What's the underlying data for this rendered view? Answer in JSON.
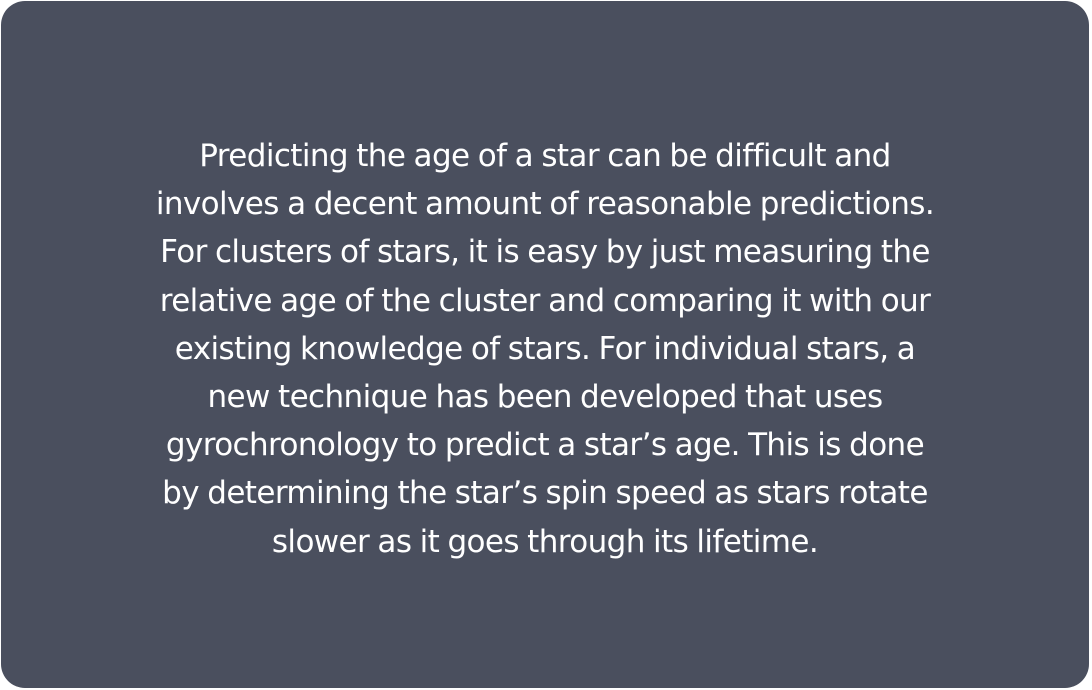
{
  "card": {
    "background": "#4a4f5e",
    "text_color": "#ffffff",
    "lines": [
      "Predicting the age of a star can be difficult and",
      "involves a decent amount of reasonable predictions.",
      "For clusters of stars, it is easy by just measuring the",
      "relative age of the cluster and comparing it with our",
      "existing knowledge of stars. For individual stars, a",
      "new technique has been developed that uses",
      "gyrochronology to predict a star’s age. This is done",
      "by determining the star’s spin speed as stars rotate",
      "slower as it goes through its lifetime."
    ]
  }
}
